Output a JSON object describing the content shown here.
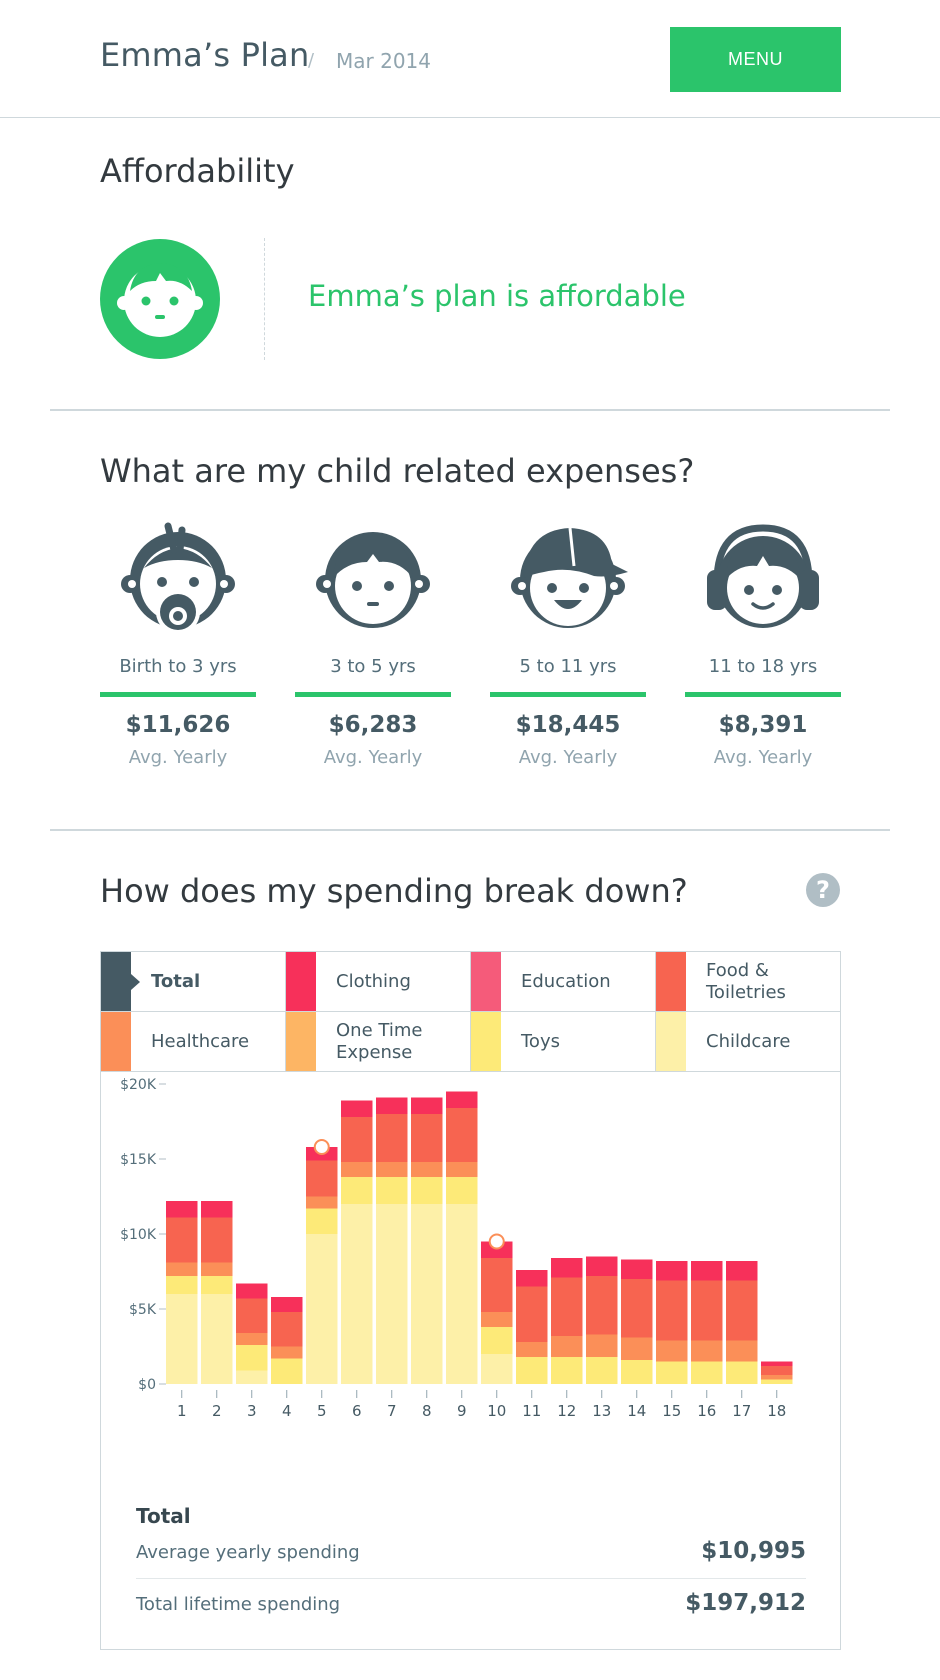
{
  "header": {
    "title": "Emma’s Plan",
    "separator": "/",
    "date": "Mar 2014",
    "menu_label": "MENU"
  },
  "affordability": {
    "title": "Affordability",
    "message": "Emma’s plan is affordable",
    "icon": "child-face-icon"
  },
  "expenses": {
    "title": "What are my child related expenses?",
    "stages": [
      {
        "icon": "baby-pacifier-icon",
        "range": "Birth to 3 yrs",
        "amount": "$11,626",
        "sub": "Avg. Yearly"
      },
      {
        "icon": "toddler-face-icon",
        "range": "3 to 5 yrs",
        "amount": "$6,283",
        "sub": "Avg. Yearly"
      },
      {
        "icon": "kid-cap-icon",
        "range": "5 to 11 yrs",
        "amount": "$18,445",
        "sub": "Avg. Yearly"
      },
      {
        "icon": "teen-headphones-icon",
        "range": "11 to 18 yrs",
        "amount": "$8,391",
        "sub": "Avg. Yearly"
      }
    ]
  },
  "breakdown": {
    "title": "How does my spending break down?",
    "help_label": "?",
    "legend": [
      {
        "label": "Total",
        "color": "#455a64",
        "active": true
      },
      {
        "label": "Clothing",
        "color": "#f7305a",
        "active": false
      },
      {
        "label": "Education",
        "color": "#f55b7a",
        "active": false
      },
      {
        "label": "Food & Toiletries",
        "color": "#f76450",
        "active": false
      },
      {
        "label": "Healthcare",
        "color": "#fb8f58",
        "active": false
      },
      {
        "label": "One Time Expense",
        "color": "#fdb564",
        "active": false
      },
      {
        "label": "Toys",
        "color": "#fdea78",
        "active": false
      },
      {
        "label": "Childcare",
        "color": "#fdf0a8",
        "active": false
      }
    ],
    "summary": {
      "title": "Total",
      "rows": [
        {
          "label": "Average yearly spending",
          "value": "$10,995"
        },
        {
          "label": "Total lifetime spending",
          "value": "$197,912"
        }
      ]
    }
  },
  "chart_data": {
    "type": "bar",
    "stacked": true,
    "categories": [
      "1",
      "2",
      "3",
      "4",
      "5",
      "6",
      "7",
      "8",
      "9",
      "10",
      "11",
      "12",
      "13",
      "14",
      "15",
      "16",
      "17",
      "18"
    ],
    "ylim": [
      0,
      20000
    ],
    "yticks": [
      0,
      5000,
      10000,
      15000,
      20000
    ],
    "ytick_labels": [
      "$0",
      "$5K",
      "$10K",
      "$15K",
      "$20K"
    ],
    "markers": [
      5,
      10
    ],
    "series": [
      {
        "name": "Childcare",
        "color": "#fdf0a8",
        "values": [
          6000,
          6000,
          900,
          0,
          10000,
          12000,
          12000,
          12000,
          12000,
          2000,
          0,
          0,
          0,
          0,
          0,
          0,
          0,
          0
        ]
      },
      {
        "name": "Toys",
        "color": "#fdea78",
        "values": [
          1200,
          1200,
          1700,
          1700,
          1700,
          1800,
          1800,
          1800,
          1800,
          1800,
          1800,
          1800,
          1800,
          1600,
          1500,
          1500,
          1500,
          300
        ]
      },
      {
        "name": "One Time Expense",
        "color": "#fdb564",
        "values": [
          0,
          0,
          0,
          0,
          0,
          0,
          0,
          0,
          0,
          0,
          0,
          0,
          0,
          0,
          0,
          0,
          0,
          0
        ]
      },
      {
        "name": "Healthcare",
        "color": "#fb8f58",
        "values": [
          900,
          900,
          800,
          800,
          800,
          1000,
          1000,
          1000,
          1000,
          1000,
          1000,
          1400,
          1500,
          1500,
          1400,
          1400,
          1400,
          300
        ]
      },
      {
        "name": "Food & Toiletries",
        "color": "#f76450",
        "values": [
          3000,
          3000,
          2300,
          2300,
          2400,
          3000,
          3200,
          3200,
          3600,
          3600,
          3700,
          3900,
          3900,
          3900,
          4000,
          4000,
          4000,
          600
        ]
      },
      {
        "name": "Education",
        "color": "#f55b7a",
        "values": [
          0,
          0,
          0,
          0,
          0,
          0,
          0,
          0,
          0,
          0,
          0,
          0,
          0,
          0,
          0,
          0,
          0,
          0
        ]
      },
      {
        "name": "Clothing",
        "color": "#f7305a",
        "values": [
          1100,
          1100,
          1000,
          1000,
          900,
          1100,
          1100,
          1100,
          1100,
          1100,
          1100,
          1300,
          1300,
          1300,
          1300,
          1300,
          1300,
          300
        ]
      }
    ]
  }
}
